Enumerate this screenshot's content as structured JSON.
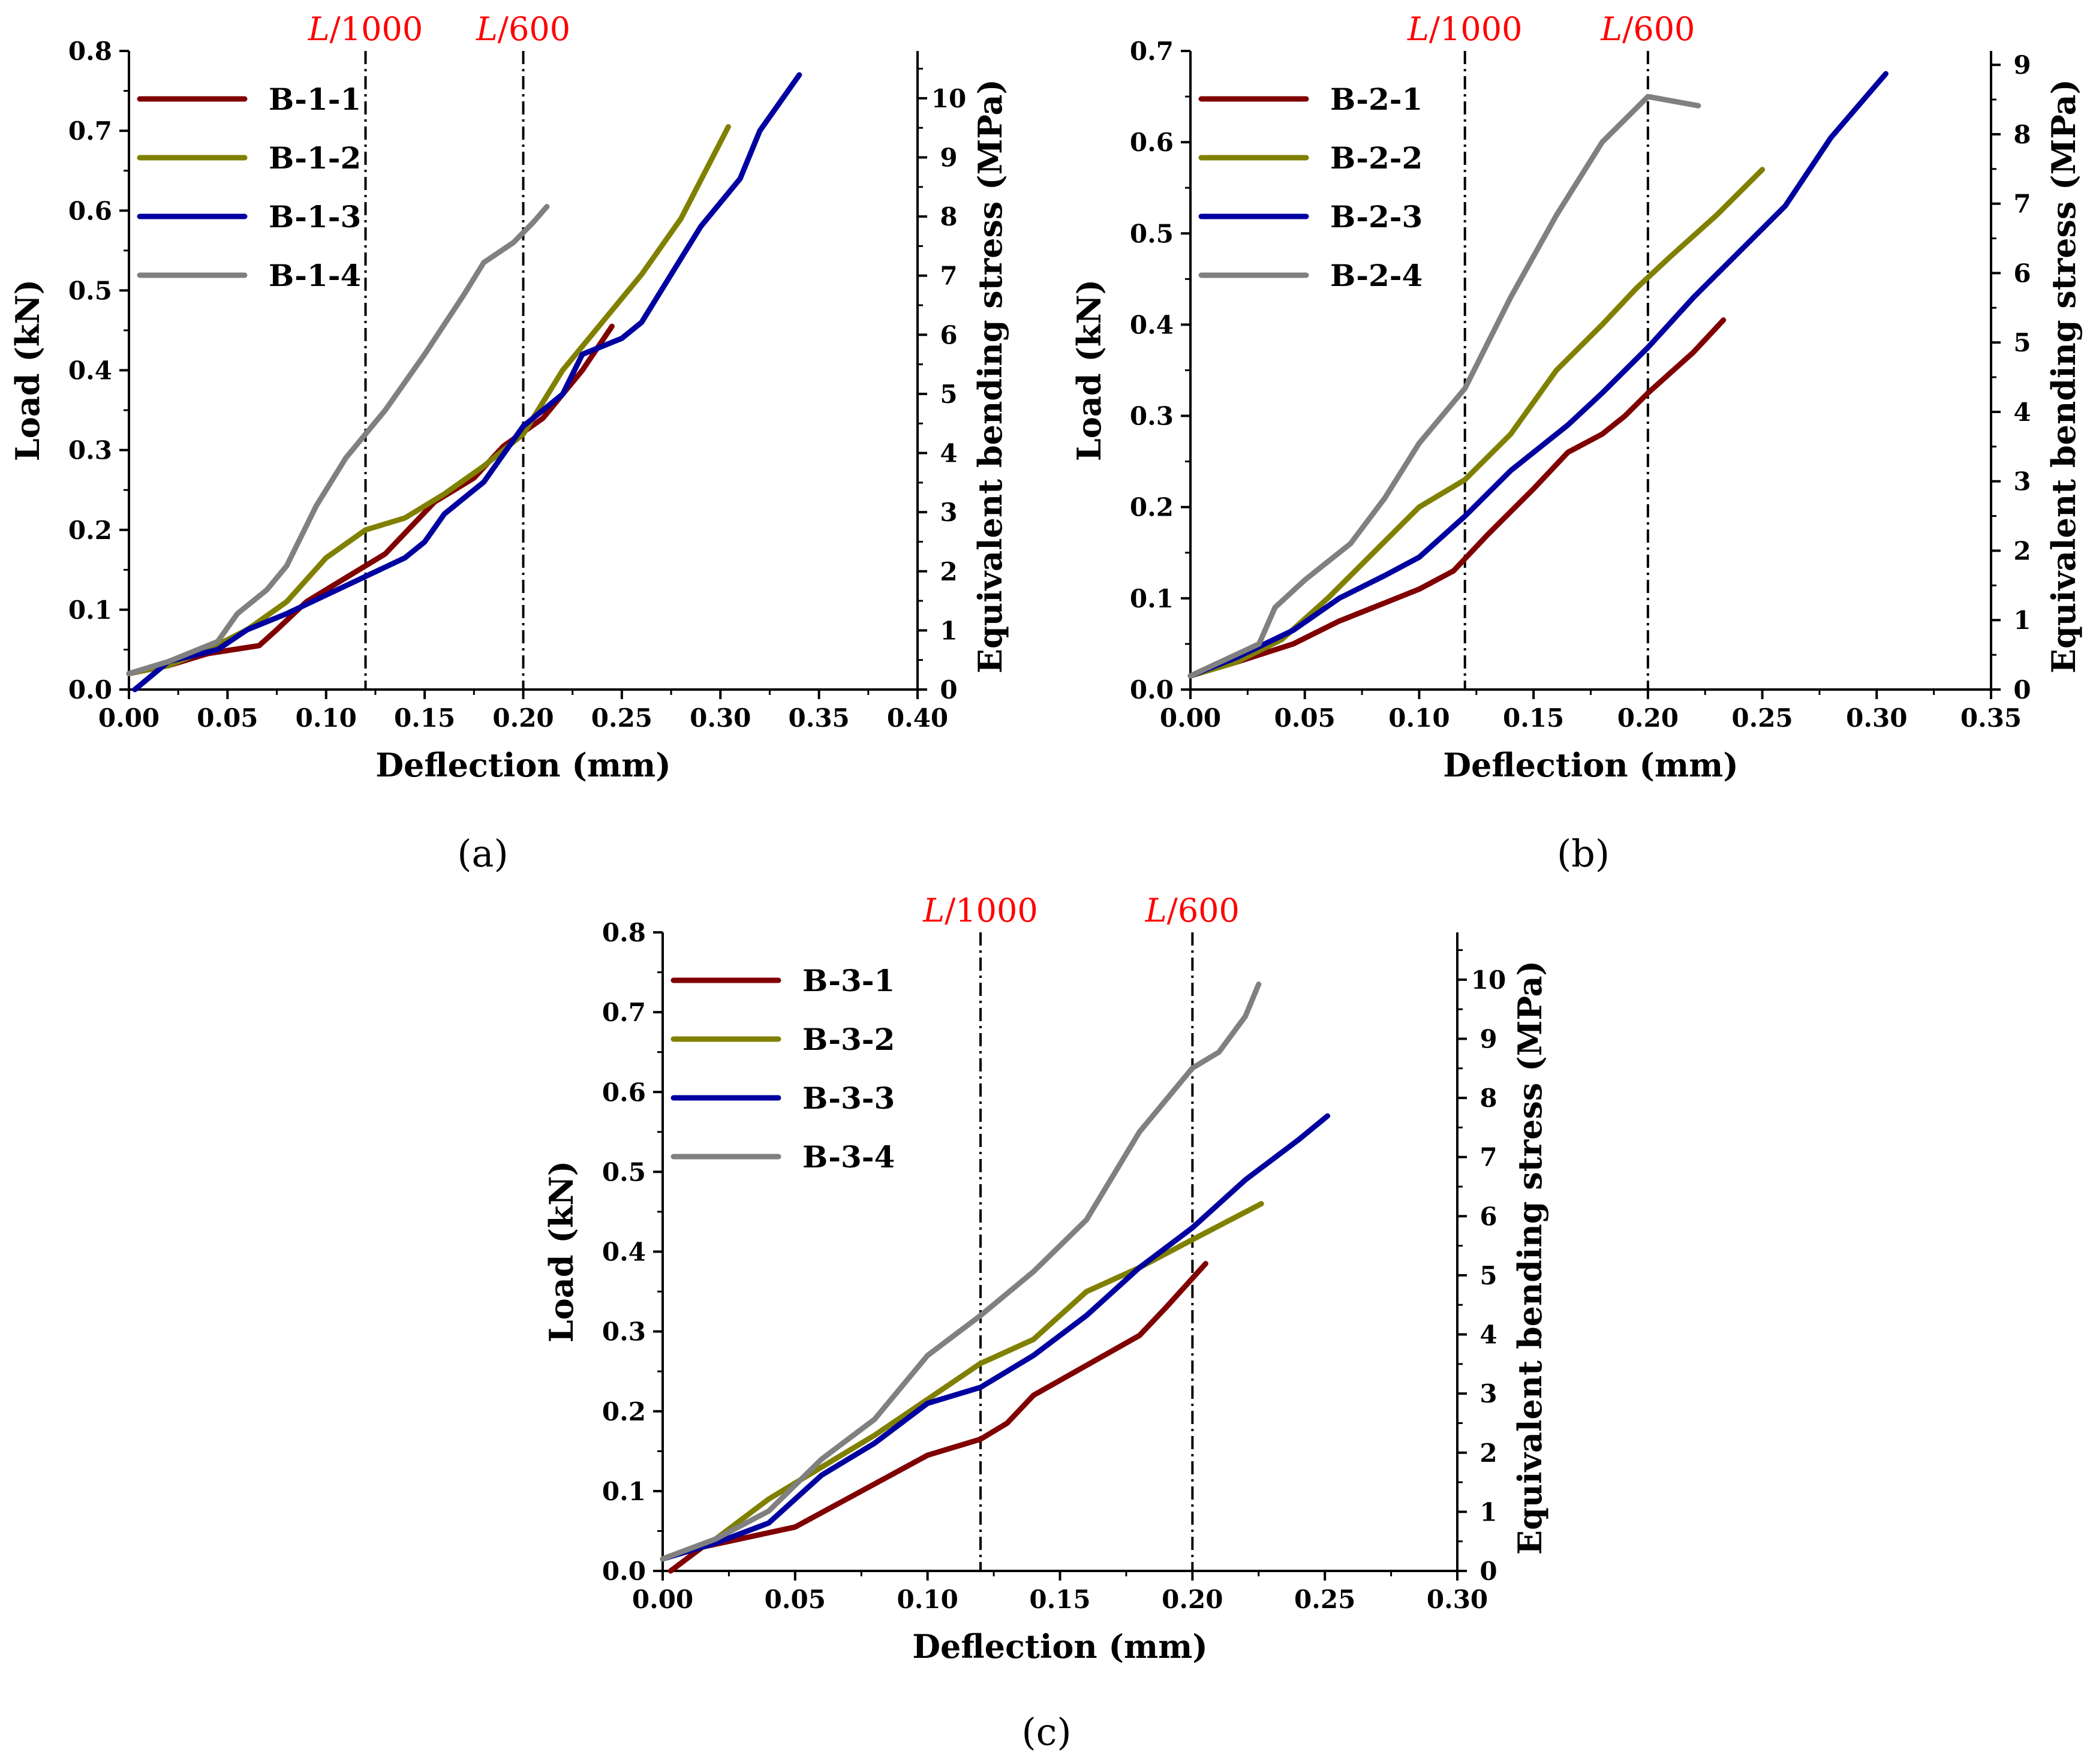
{
  "colors": {
    "B1": "#800000",
    "B2": "#808000",
    "B3": "#0000a0",
    "B4": "#808080",
    "ref_label": "#ff0000"
  },
  "chart_data": [
    {
      "type": "line",
      "panel_label": "(a)",
      "xlabel": "Deflection (mm)",
      "ylabel": "Load (kN)",
      "y2label": "Equivalent bending stress (MPa)",
      "xlim": [
        0,
        0.4
      ],
      "ylim": [
        0,
        0.8
      ],
      "y2lim": [
        0,
        10.8
      ],
      "xticks": [
        "0.00",
        "0.05",
        "0.10",
        "0.15",
        "0.20",
        "0.25",
        "0.30",
        "0.35",
        "0.40"
      ],
      "yticks": [
        "0.0",
        "0.1",
        "0.2",
        "0.3",
        "0.4",
        "0.5",
        "0.6",
        "0.7",
        "0.8"
      ],
      "y2ticks": [
        "0",
        "1",
        "2",
        "3",
        "4",
        "5",
        "6",
        "7",
        "8",
        "9",
        "10"
      ],
      "legend_position": "top-left",
      "reference_lines": [
        {
          "x": 0.12,
          "label_italic": "L",
          "label_rest": "/1000"
        },
        {
          "x": 0.2,
          "label_italic": "L",
          "label_rest": "/600"
        }
      ],
      "series": [
        {
          "name": "B-1-1",
          "color_key": "B1",
          "x": [
            0.0,
            0.02,
            0.04,
            0.066,
            0.075,
            0.09,
            0.11,
            0.13,
            0.155,
            0.175,
            0.19,
            0.21,
            0.23,
            0.245
          ],
          "y": [
            0.02,
            0.03,
            0.045,
            0.055,
            0.075,
            0.11,
            0.14,
            0.17,
            0.235,
            0.265,
            0.305,
            0.34,
            0.4,
            0.455
          ]
        },
        {
          "name": "B-1-2",
          "color_key": "B2",
          "x": [
            0.0,
            0.02,
            0.04,
            0.06,
            0.08,
            0.1,
            0.12,
            0.14,
            0.16,
            0.18,
            0.2,
            0.22,
            0.24,
            0.26,
            0.28,
            0.304
          ],
          "y": [
            0.02,
            0.03,
            0.05,
            0.075,
            0.11,
            0.165,
            0.2,
            0.215,
            0.245,
            0.28,
            0.32,
            0.4,
            0.46,
            0.52,
            0.59,
            0.705
          ]
        },
        {
          "name": "B-1-3",
          "color_key": "B3",
          "x": [
            0.003,
            0.02,
            0.045,
            0.06,
            0.08,
            0.11,
            0.14,
            0.15,
            0.16,
            0.18,
            0.2,
            0.22,
            0.23,
            0.25,
            0.26,
            0.29,
            0.31,
            0.32,
            0.34
          ],
          "y": [
            0.0,
            0.035,
            0.05,
            0.075,
            0.095,
            0.13,
            0.165,
            0.185,
            0.22,
            0.26,
            0.33,
            0.37,
            0.42,
            0.44,
            0.46,
            0.58,
            0.64,
            0.7,
            0.77
          ]
        },
        {
          "name": "B-1-4",
          "color_key": "B4",
          "x": [
            0.0,
            0.02,
            0.045,
            0.055,
            0.07,
            0.08,
            0.095,
            0.11,
            0.13,
            0.15,
            0.17,
            0.18,
            0.195,
            0.205,
            0.212
          ],
          "y": [
            0.02,
            0.035,
            0.06,
            0.095,
            0.125,
            0.155,
            0.23,
            0.29,
            0.35,
            0.42,
            0.495,
            0.535,
            0.56,
            0.585,
            0.605
          ]
        }
      ]
    },
    {
      "type": "line",
      "panel_label": "(b)",
      "xlabel": "Deflection (mm)",
      "ylabel": "Load (kN)",
      "y2label": "Equivalent bending stress (MPa)",
      "xlim": [
        0,
        0.35
      ],
      "ylim": [
        0,
        0.7
      ],
      "y2lim": [
        0,
        9.2
      ],
      "xticks": [
        "0.00",
        "0.05",
        "0.10",
        "0.15",
        "0.20",
        "0.25",
        "0.30",
        "0.35"
      ],
      "yticks": [
        "0.0",
        "0.1",
        "0.2",
        "0.3",
        "0.4",
        "0.5",
        "0.6",
        "0.7"
      ],
      "y2ticks": [
        "0",
        "1",
        "2",
        "3",
        "4",
        "5",
        "6",
        "7",
        "8",
        "9"
      ],
      "legend_position": "top-left",
      "reference_lines": [
        {
          "x": 0.12,
          "label_italic": "L",
          "label_rest": "/1000"
        },
        {
          "x": 0.2,
          "label_italic": "L",
          "label_rest": "/600"
        }
      ],
      "series": [
        {
          "name": "B-2-1",
          "color_key": "B1",
          "x": [
            0.0,
            0.02,
            0.045,
            0.065,
            0.085,
            0.1,
            0.115,
            0.13,
            0.15,
            0.165,
            0.18,
            0.19,
            0.2,
            0.22,
            0.233
          ],
          "y": [
            0.015,
            0.03,
            0.05,
            0.075,
            0.095,
            0.11,
            0.13,
            0.17,
            0.22,
            0.26,
            0.28,
            0.3,
            0.325,
            0.37,
            0.405
          ]
        },
        {
          "name": "B-2-2",
          "color_key": "B2",
          "x": [
            0.0,
            0.02,
            0.04,
            0.06,
            0.08,
            0.1,
            0.12,
            0.14,
            0.16,
            0.18,
            0.195,
            0.21,
            0.23,
            0.25
          ],
          "y": [
            0.015,
            0.03,
            0.055,
            0.1,
            0.15,
            0.2,
            0.23,
            0.28,
            0.35,
            0.4,
            0.44,
            0.475,
            0.52,
            0.57
          ]
        },
        {
          "name": "B-2-3",
          "color_key": "B3",
          "x": [
            0.0,
            0.02,
            0.045,
            0.065,
            0.085,
            0.1,
            0.12,
            0.14,
            0.165,
            0.18,
            0.2,
            0.22,
            0.24,
            0.26,
            0.28,
            0.304
          ],
          "y": [
            0.015,
            0.035,
            0.065,
            0.1,
            0.125,
            0.145,
            0.19,
            0.24,
            0.29,
            0.325,
            0.375,
            0.43,
            0.48,
            0.53,
            0.605,
            0.675
          ]
        },
        {
          "name": "B-2-4",
          "color_key": "B4",
          "x": [
            0.0,
            0.03,
            0.037,
            0.05,
            0.07,
            0.085,
            0.1,
            0.12,
            0.14,
            0.16,
            0.18,
            0.2,
            0.222
          ],
          "y": [
            0.015,
            0.05,
            0.09,
            0.12,
            0.16,
            0.21,
            0.27,
            0.33,
            0.43,
            0.52,
            0.6,
            0.65,
            0.64
          ]
        }
      ]
    },
    {
      "type": "line",
      "panel_label": "(c)",
      "xlabel": "Deflection (mm)",
      "ylabel": "Load (kN)",
      "y2label": "Equivalent bending stress (MPa)",
      "xlim": [
        0,
        0.3
      ],
      "ylim": [
        0,
        0.8
      ],
      "y2lim": [
        0,
        10.8
      ],
      "xticks": [
        "0.00",
        "0.05",
        "0.10",
        "0.15",
        "0.20",
        "0.25",
        "0.30"
      ],
      "yticks": [
        "0.0",
        "0.1",
        "0.2",
        "0.3",
        "0.4",
        "0.5",
        "0.6",
        "0.7",
        "0.8"
      ],
      "y2ticks": [
        "0",
        "1",
        "2",
        "3",
        "4",
        "5",
        "6",
        "7",
        "8",
        "9",
        "10"
      ],
      "legend_position": "top-left",
      "reference_lines": [
        {
          "x": 0.12,
          "label_italic": "L",
          "label_rest": "/1000"
        },
        {
          "x": 0.2,
          "label_italic": "L",
          "label_rest": "/600"
        }
      ],
      "series": [
        {
          "name": "B-3-1",
          "color_key": "B1",
          "x": [
            0.003,
            0.015,
            0.05,
            0.1,
            0.12,
            0.13,
            0.14,
            0.18,
            0.19,
            0.205
          ],
          "y": [
            0.0,
            0.03,
            0.055,
            0.145,
            0.165,
            0.185,
            0.22,
            0.295,
            0.33,
            0.385
          ]
        },
        {
          "name": "B-3-2",
          "color_key": "B2",
          "x": [
            0.0,
            0.02,
            0.04,
            0.06,
            0.08,
            0.1,
            0.12,
            0.14,
            0.16,
            0.18,
            0.2,
            0.226
          ],
          "y": [
            0.015,
            0.04,
            0.09,
            0.13,
            0.17,
            0.215,
            0.26,
            0.29,
            0.35,
            0.38,
            0.415,
            0.46
          ]
        },
        {
          "name": "B-3-3",
          "color_key": "B3",
          "x": [
            0.0,
            0.02,
            0.04,
            0.06,
            0.08,
            0.1,
            0.12,
            0.14,
            0.16,
            0.18,
            0.2,
            0.22,
            0.24,
            0.251
          ],
          "y": [
            0.015,
            0.035,
            0.06,
            0.12,
            0.16,
            0.21,
            0.23,
            0.27,
            0.32,
            0.38,
            0.43,
            0.49,
            0.54,
            0.57
          ]
        },
        {
          "name": "B-3-4",
          "color_key": "B4",
          "x": [
            0.0,
            0.02,
            0.04,
            0.06,
            0.08,
            0.1,
            0.12,
            0.14,
            0.16,
            0.18,
            0.2,
            0.21,
            0.22,
            0.225
          ],
          "y": [
            0.015,
            0.04,
            0.075,
            0.14,
            0.19,
            0.27,
            0.32,
            0.375,
            0.44,
            0.55,
            0.63,
            0.65,
            0.695,
            0.735
          ]
        }
      ]
    }
  ]
}
